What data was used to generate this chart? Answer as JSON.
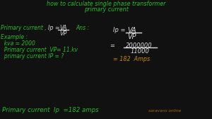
{
  "bg_color": "#111111",
  "title_color": "#22bb22",
  "white": "#dddddd",
  "green": "#22bb22",
  "orange": "#cc8800",
  "dark_orange": "#aa6600",
  "title_line1": "how to calculate single phase transformer",
  "title_line2": "primary current",
  "left_primary": "Primary current ,",
  "formula_ip": "Ip =",
  "formula_va": "VA",
  "formula_vp": "VP",
  "ans_label": "Ans :",
  "example_label": "Example :",
  "kva_line": "  kva = 2000",
  "vp_line": "  Primary current  VP= 11.kv",
  "ip_line": "  primary current IP = ?",
  "ans_ip": "Ip =",
  "ans_va": "VA",
  "ans_vp": "VP",
  "equals1": "=",
  "ans_num": "2000000",
  "ans_den": "11000",
  "ans_result": "= 182  Amps",
  "bottom_line": "Primary current  Ip  =182 amps",
  "watermark": "saravans online"
}
